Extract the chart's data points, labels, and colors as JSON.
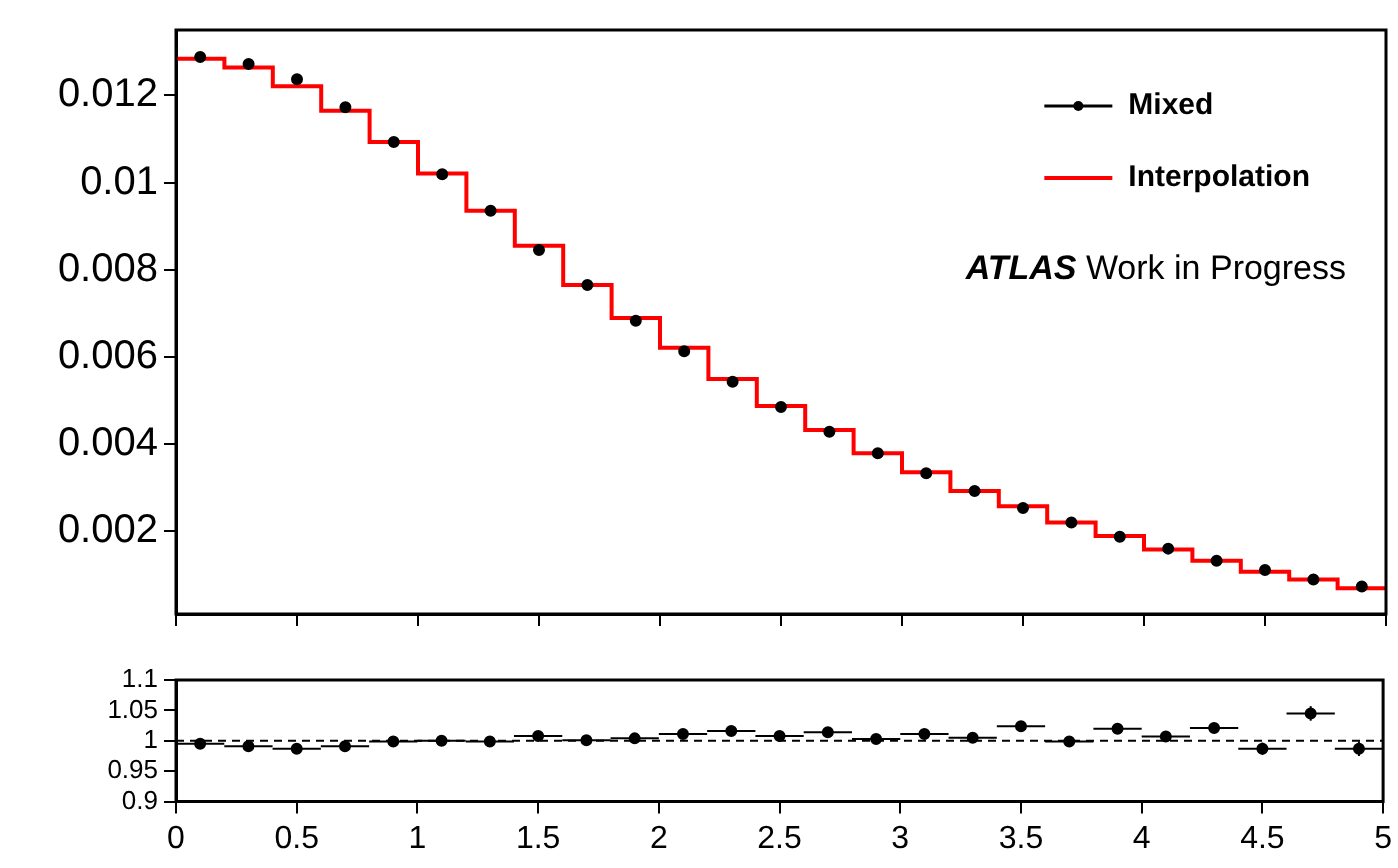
{
  "chart_data": [
    {
      "type": "scatter",
      "annotations": [
        "ATLAS Work in Progress"
      ],
      "legend": "top right",
      "tick_labels": "y",
      "xlim": [
        0,
        5
      ],
      "xticks": [
        0,
        0.5,
        1,
        1.5,
        2,
        2.5,
        3,
        3.5,
        4,
        4.5,
        5
      ],
      "ylim": [
        0.0001,
        0.0135
      ],
      "yticks": [
        0.002,
        0.004,
        0.006,
        0.008,
        0.01,
        0.012
      ],
      "x": [
        0.1,
        0.3,
        0.5,
        0.7,
        0.9,
        1.1,
        1.3,
        1.5,
        1.7,
        1.9,
        2.1,
        2.3,
        2.5,
        2.7,
        2.9,
        3.1,
        3.3,
        3.5,
        3.7,
        3.9,
        4.1,
        4.3,
        4.5,
        4.7,
        4.9
      ],
      "series": [
        {
          "name": "Mixed",
          "marker": "circle",
          "color": "#000000",
          "values": [
            0.01288,
            0.01272,
            0.01237,
            0.01173,
            0.01093,
            0.01019,
            0.00935,
            0.00845,
            0.00765,
            0.00683,
            0.00613,
            0.00543,
            0.00485,
            0.00428,
            0.00379,
            0.00333,
            0.00292,
            0.00253,
            0.0022,
            0.00187,
            0.0016,
            0.00132,
            0.00111,
            0.00089,
            0.00073
          ]
        },
        {
          "name": "Interpolation",
          "type": "histogram",
          "bins": [
            0,
            0.2,
            0.4,
            0.6,
            0.8,
            1,
            1.2,
            1.4,
            1.6,
            1.8,
            2,
            2.2,
            2.4,
            2.6,
            2.8,
            3,
            3.2,
            3.4,
            3.6,
            3.8,
            4,
            4.2,
            4.4,
            4.6,
            4.8,
            5
          ],
          "color": "#ff0000",
          "values": [
            0.01284,
            0.01264,
            0.01221,
            0.01165,
            0.01093,
            0.01021,
            0.00935,
            0.00855,
            0.00765,
            0.00689,
            0.00621,
            0.00549,
            0.00487,
            0.00432,
            0.00379,
            0.00335,
            0.00292,
            0.00257,
            0.0022,
            0.00189,
            0.00158,
            0.00132,
            0.00107,
            0.00089,
            0.00069
          ]
        }
      ]
    },
    {
      "type": "scatter",
      "marker": "circle",
      "xlim": [
        0,
        5
      ],
      "xticks": [
        0,
        0.5,
        1,
        1.5,
        2,
        2.5,
        3,
        3.5,
        4,
        4.5,
        5
      ],
      "ylim": [
        0.9,
        1.1
      ],
      "yticks": [
        0.9,
        0.95,
        1,
        1.05,
        1.1
      ],
      "ref_lines": [
        {
          "axis": "y",
          "value": 1,
          "line_style": "dashed",
          "color": "#000000"
        }
      ],
      "x": [
        0.1,
        0.3,
        0.5,
        0.7,
        0.9,
        1.1,
        1.3,
        1.5,
        1.7,
        1.9,
        2.1,
        2.3,
        2.5,
        2.7,
        2.9,
        3.1,
        3.3,
        3.5,
        3.7,
        3.9,
        4.1,
        4.3,
        4.5,
        4.7,
        4.9
      ],
      "series": [
        {
          "color": "#000000",
          "values": [
            0.995,
            0.991,
            0.987,
            0.991,
            0.999,
            1.0,
            0.999,
            1.008,
            1.001,
            1.004,
            1.011,
            1.016,
            1.008,
            1.014,
            1.003,
            1.011,
            1.005,
            1.024,
            0.999,
            1.02,
            1.007,
            1.021,
            0.987,
            1.045,
            0.987
          ],
          "errors": [
            null,
            null,
            null,
            null,
            null,
            null,
            null,
            null,
            null,
            null,
            null,
            null,
            null,
            null,
            0.004,
            0.005,
            0.005,
            0.006,
            0.006,
            0.007,
            0.007,
            0.008,
            0.01,
            0.012,
            0.012
          ],
          "xerrors": [
            0.1,
            0.1,
            0.1,
            0.1,
            0.1,
            0.1,
            0.1,
            0.1,
            0.1,
            0.1,
            0.1,
            0.1,
            0.1,
            0.1,
            0.1,
            0.1,
            0.1,
            0.1,
            0.1,
            0.1,
            0.1,
            0.1,
            0.1,
            0.1,
            0.1
          ]
        }
      ]
    }
  ]
}
